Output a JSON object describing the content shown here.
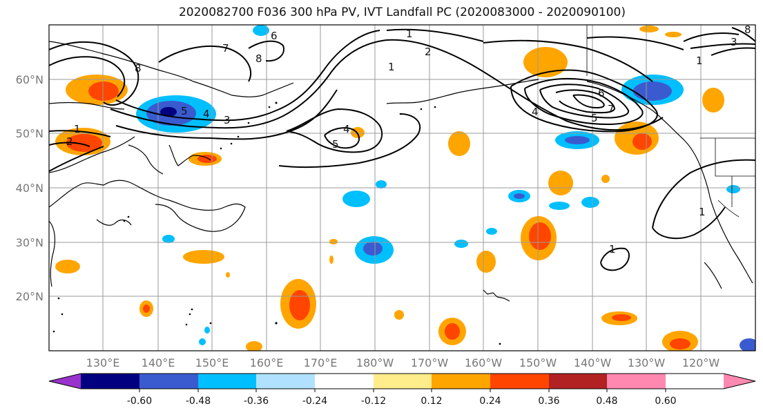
{
  "title": "2020082700 F036 300 hPa PV, IVT Landfall PC (2020083000 - 2020090100)",
  "lon_labels": [
    "130°E",
    "140°E",
    "150°E",
    "160°E",
    "170°E",
    "180°W",
    "170°W",
    "160°W",
    "150°W",
    "140°W",
    "130°W",
    "120°W"
  ],
  "lat_labels": [
    "60°N",
    "50°N",
    "40°N",
    "30°N",
    "20°N"
  ],
  "colorbar": {
    "tick_labels": [
      "-0.60",
      "-0.48",
      "-0.36",
      "-0.24",
      "-0.12",
      "0.12",
      "0.24",
      "0.36",
      "0.48",
      "0.60"
    ],
    "colors": [
      "#9932cc",
      "#000080",
      "#3a5bd0",
      "#00bfff",
      "#b0e2ff",
      "#ffffff",
      "#ffec8b",
      "#ffa500",
      "#ff4500",
      "#b22222",
      "#ff88b0"
    ]
  },
  "contour_labels": [
    "1",
    "2",
    "3",
    "4",
    "5",
    "6",
    "7",
    "8"
  ]
}
